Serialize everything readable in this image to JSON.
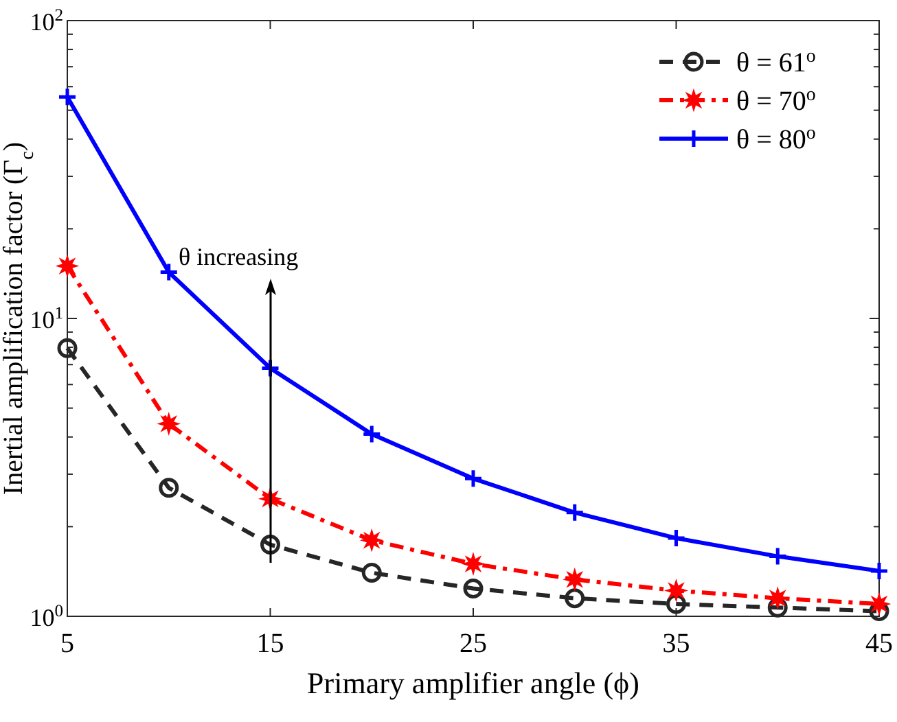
{
  "chart_data": {
    "type": "line",
    "xlabel": "Primary amplifier angle (ϕ)",
    "ylabel": "Inertial amplification factor (Γ$_{c}$)",
    "x": [
      5,
      10,
      15,
      20,
      25,
      30,
      35,
      40,
      45
    ],
    "series": [
      {
        "name": "θ = 61$^{o}$",
        "color": "#262626",
        "marker": "circle",
        "line_style": "dashed",
        "values": [
          7.95,
          2.7,
          1.74,
          1.4,
          1.24,
          1.15,
          1.1,
          1.07,
          1.04
        ]
      },
      {
        "name": "θ = 70$^{o}$",
        "color": "#ff0000",
        "marker": "star",
        "line_style": "dashdot",
        "values": [
          15.0,
          4.43,
          2.48,
          1.8,
          1.5,
          1.33,
          1.22,
          1.15,
          1.1
        ]
      },
      {
        "name": "θ = 80$^{o}$",
        "color": "#0000ff",
        "marker": "cross",
        "line_style": "solid",
        "values": [
          55.4,
          14.3,
          6.81,
          4.09,
          2.9,
          2.23,
          1.83,
          1.59,
          1.42
        ]
      }
    ],
    "xlim": [
      5,
      45
    ],
    "xticks": [
      5,
      15,
      25,
      35,
      45
    ],
    "ylim": [
      1,
      100
    ],
    "log": true,
    "yticks": [
      {
        "value": 1,
        "label": "10$^{0}$"
      },
      {
        "value": 2,
        "label": null
      },
      {
        "value": 3,
        "label": null
      },
      {
        "value": 4,
        "label": null
      },
      {
        "value": 5,
        "label": null
      },
      {
        "value": 6,
        "label": null
      },
      {
        "value": 7,
        "label": null
      },
      {
        "value": 8,
        "label": null
      },
      {
        "value": 9,
        "label": null
      },
      {
        "value": 10,
        "label": "10$^{1}$"
      },
      {
        "value": 20,
        "label": null
      },
      {
        "value": 30,
        "label": null
      },
      {
        "value": 40,
        "label": null
      },
      {
        "value": 50,
        "label": null
      },
      {
        "value": 60,
        "label": null
      },
      {
        "value": 70,
        "label": null
      },
      {
        "value": 80,
        "label": null
      },
      {
        "value": 90,
        "label": null
      },
      {
        "value": 100,
        "label": "10$^{2}$"
      }
    ],
    "annotations": [
      "θ increasing"
    ],
    "legend": "top right",
    "grid": false
  }
}
